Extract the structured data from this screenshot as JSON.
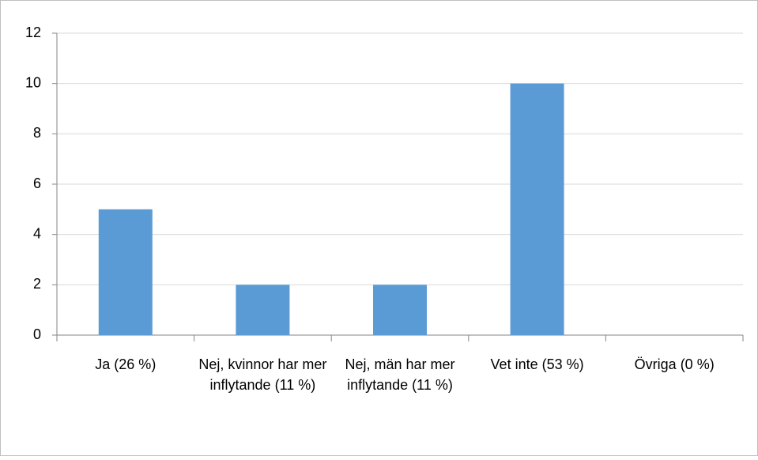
{
  "chart_data": {
    "type": "bar",
    "categories": [
      "Ja (26 %)",
      "Nej, kvinnor har mer inflytande (11 %)",
      "Nej, män har mer inflytande (11 %)",
      "Vet inte (53 %)",
      "Övriga (0 %)"
    ],
    "values": [
      5,
      2,
      2,
      10,
      0
    ],
    "color": "#5b9bd5",
    "ylim": [
      0,
      12
    ],
    "yticks": [
      0,
      2,
      4,
      6,
      8,
      10,
      12
    ],
    "grid": true
  }
}
